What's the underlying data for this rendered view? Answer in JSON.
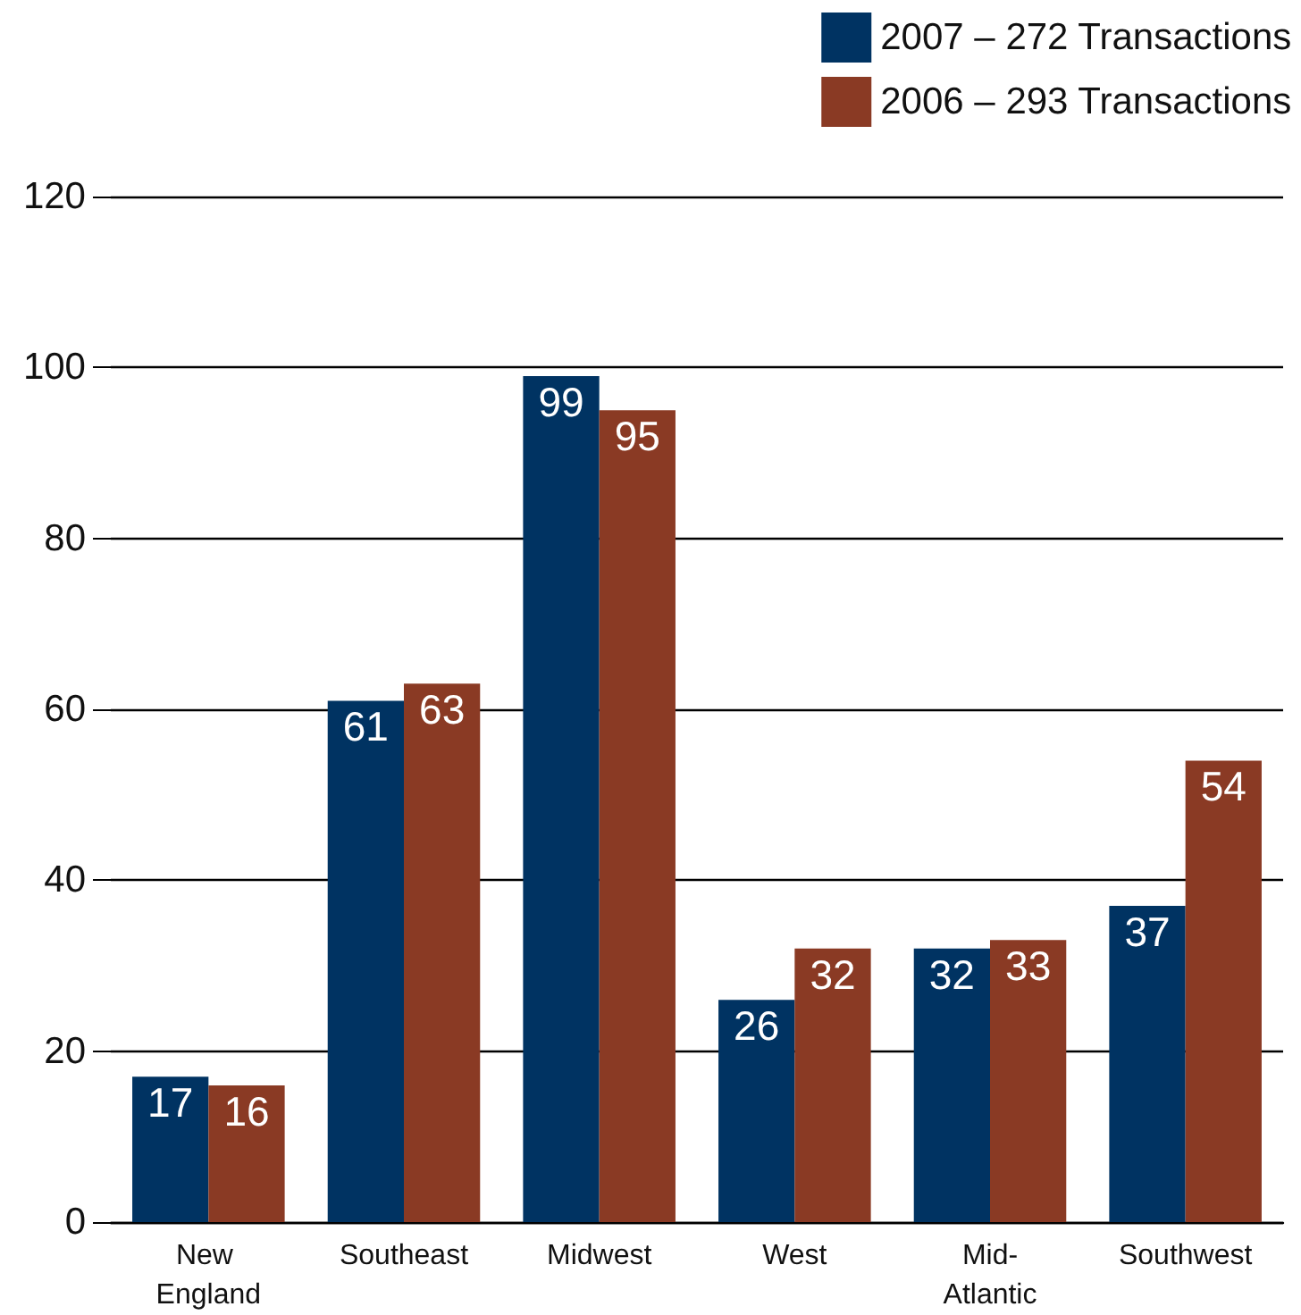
{
  "chart_data": {
    "type": "bar",
    "categories": [
      "New England",
      "Southeast",
      "Midwest",
      "West",
      "Mid-Atlantic",
      "Southwest"
    ],
    "series": [
      {
        "name": "2007 – 272 Transactions",
        "color": "#003362",
        "values": [
          17,
          61,
          99,
          26,
          32,
          37
        ]
      },
      {
        "name": "2006 – 293 Transactions",
        "color": "#8a3a24",
        "values": [
          16,
          63,
          95,
          32,
          33,
          54
        ]
      }
    ],
    "ylim": [
      0,
      120
    ],
    "yticks": [
      0,
      20,
      40,
      60,
      80,
      100,
      120
    ],
    "grid": "y",
    "legend": "top right",
    "data_labels": true
  }
}
